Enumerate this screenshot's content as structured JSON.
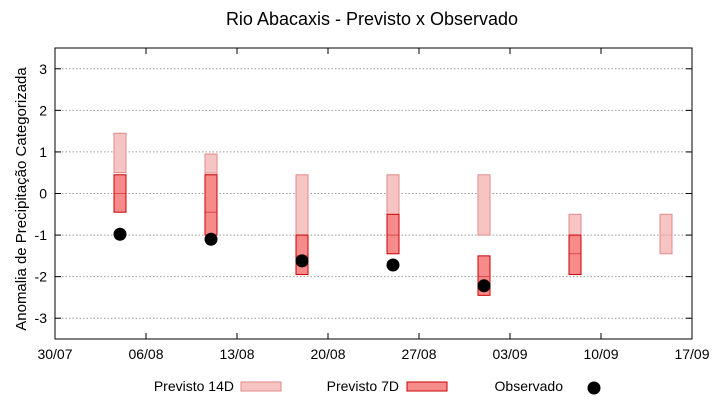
{
  "chart_data": {
    "type": "floating-bar-with-scatter",
    "title": "Rio Abacaxis - Previsto x Observado",
    "ylabel": "Anomalia de Precipitação Categorizada",
    "xlabel": "",
    "ylim": [
      -3.5,
      3.5
    ],
    "yticks": [
      -3,
      -2,
      -1,
      0,
      1,
      2,
      3
    ],
    "xlim": [
      "2023-07-30",
      "2023-09-17"
    ],
    "xticks": [
      "30/07",
      "06/08",
      "13/08",
      "20/08",
      "27/08",
      "03/09",
      "10/09",
      "17/09"
    ],
    "grid": true,
    "legend_position": "bottom",
    "series": [
      {
        "name": "Previsto 14D",
        "kind": "range",
        "color_fill": "#f7c4c4",
        "color_edge": "#e08a8a",
        "points": [
          {
            "x": "2023-08-04",
            "low": 0.5,
            "high": 1.45,
            "mid": null
          },
          {
            "x": "2023-08-11",
            "low": -0.5,
            "high": 0.95,
            "mid": 0.5
          },
          {
            "x": "2023-08-18",
            "low": -1.0,
            "high": 0.45,
            "mid": null
          },
          {
            "x": "2023-08-25",
            "low": -1.0,
            "high": 0.45,
            "mid": null
          },
          {
            "x": "2023-09-01",
            "low": -1.0,
            "high": 0.45,
            "mid": null
          },
          {
            "x": "2023-09-08",
            "low": -1.0,
            "high": -0.5,
            "mid": null
          },
          {
            "x": "2023-09-15",
            "low": -1.45,
            "high": -0.5,
            "mid": -1.0
          }
        ]
      },
      {
        "name": "Previsto 7D",
        "kind": "range",
        "color_fill": "#f58b8b",
        "color_edge": "#cc0000",
        "points": [
          {
            "x": "2023-08-04",
            "low": -0.45,
            "high": 0.45,
            "mid": 0.0
          },
          {
            "x": "2023-08-11",
            "low": -1.0,
            "high": 0.45,
            "mid": -0.45
          },
          {
            "x": "2023-08-18",
            "low": -1.95,
            "high": -1.0,
            "mid": -1.5
          },
          {
            "x": "2023-08-25",
            "low": -1.45,
            "high": -0.5,
            "mid": -1.0
          },
          {
            "x": "2023-09-01",
            "low": -2.45,
            "high": -1.5,
            "mid": -2.0
          },
          {
            "x": "2023-09-08",
            "low": -1.95,
            "high": -1.0,
            "mid": -1.45
          }
        ]
      },
      {
        "name": "Observado",
        "kind": "scatter",
        "color": "#000000",
        "points": [
          {
            "x": "2023-08-04",
            "y": -0.98
          },
          {
            "x": "2023-08-11",
            "y": -1.1
          },
          {
            "x": "2023-08-18",
            "y": -1.62
          },
          {
            "x": "2023-08-25",
            "y": -1.72
          },
          {
            "x": "2023-09-01",
            "y": -2.22
          }
        ]
      }
    ]
  }
}
